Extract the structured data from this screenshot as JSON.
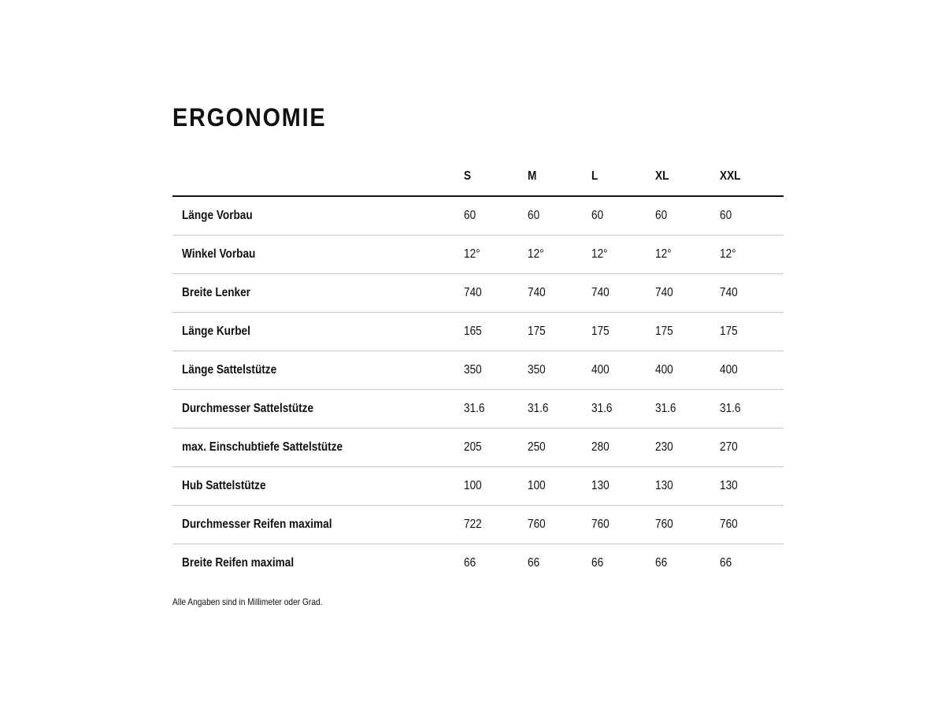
{
  "title": "ERGONOMIE",
  "table": {
    "columns": [
      "S",
      "M",
      "L",
      "XL",
      "XXL"
    ],
    "rows": [
      {
        "label": "Länge Vorbau",
        "values": [
          "60",
          "60",
          "60",
          "60",
          "60"
        ]
      },
      {
        "label": "Winkel Vorbau",
        "values": [
          "12°",
          "12°",
          "12°",
          "12°",
          "12°"
        ]
      },
      {
        "label": "Breite Lenker",
        "values": [
          "740",
          "740",
          "740",
          "740",
          "740"
        ]
      },
      {
        "label": "Länge Kurbel",
        "values": [
          "165",
          "175",
          "175",
          "175",
          "175"
        ]
      },
      {
        "label": "Länge Sattelstütze",
        "values": [
          "350",
          "350",
          "400",
          "400",
          "400"
        ]
      },
      {
        "label": "Durchmesser Sattelstütze",
        "values": [
          "31.6",
          "31.6",
          "31.6",
          "31.6",
          "31.6"
        ]
      },
      {
        "label": "max. Einschubtiefe Sattelstütze",
        "values": [
          "205",
          "250",
          "280",
          "230",
          "270"
        ]
      },
      {
        "label": "Hub Sattelstütze",
        "values": [
          "100",
          "100",
          "130",
          "130",
          "130"
        ]
      },
      {
        "label": "Durchmesser Reifen maximal",
        "values": [
          "722",
          "760",
          "760",
          "760",
          "760"
        ]
      },
      {
        "label": "Breite Reifen maximal",
        "values": [
          "66",
          "66",
          "66",
          "66",
          "66"
        ]
      }
    ]
  },
  "footnote": "Alle Angaben sind in Millimeter oder Grad."
}
